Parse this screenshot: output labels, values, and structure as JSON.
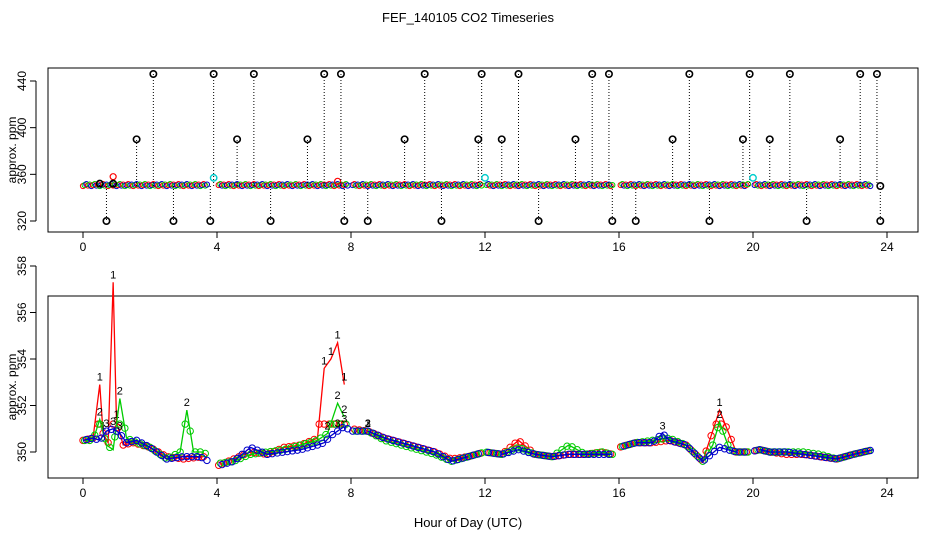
{
  "title": "FEF_140105  CO2 Timeseries",
  "xlabel": "Hour of Day (UTC)",
  "colors": {
    "series1": "#ff0000",
    "series2": "#00cc00",
    "series3": "#0000cc",
    "calibration": "#00cccc",
    "axis": "#000000"
  },
  "chart_data": [
    {
      "type": "scatter",
      "title": "FEF_140105  CO2 Timeseries",
      "xlabel": "",
      "ylabel": "approx. ppm",
      "xlim": [
        0,
        24
      ],
      "ylim": [
        314,
        446
      ],
      "xticks": [
        "0",
        "4",
        "8",
        "12",
        "16",
        "20",
        "24"
      ],
      "yticks": [
        "320",
        "360",
        "400",
        "440"
      ],
      "baseline_ppm": 350,
      "spike_times": [
        0.5,
        0.7,
        0.9,
        1.6,
        2.1,
        2.7,
        3.8,
        3.9,
        4.6,
        5.1,
        5.6,
        6.7,
        7.2,
        7.7,
        7.8,
        8.5,
        9.6,
        10.2,
        10.7,
        11.8,
        11.9,
        12.5,
        13.0,
        13.6,
        14.7,
        15.2,
        15.7,
        15.8,
        16.5,
        17.6,
        18.1,
        18.7,
        19.7,
        19.9,
        20.5,
        21.1,
        21.6,
        22.6,
        23.2,
        23.7,
        23.8
      ],
      "spike_values": [
        352,
        320,
        352,
        390,
        446,
        320,
        320,
        446,
        390,
        446,
        320,
        390,
        446,
        446,
        320,
        320,
        390,
        446,
        320,
        390,
        446,
        390,
        446,
        320,
        390,
        446,
        446,
        320,
        320,
        390,
        446,
        320,
        390,
        446,
        390,
        446,
        320,
        390,
        446,
        446,
        320
      ],
      "calibration_points": [
        {
          "x": 3.9,
          "y": 357
        },
        {
          "x": 12.0,
          "y": 357
        },
        {
          "x": 20.0,
          "y": 357
        }
      ]
    },
    {
      "type": "line",
      "title": "",
      "xlabel": "Hour of Day (UTC)",
      "ylabel": "approx. ppm",
      "xlim": [
        0,
        24
      ],
      "ylim": [
        349.0,
        358.0
      ],
      "xticks": [
        "0",
        "4",
        "8",
        "12",
        "16",
        "20",
        "24"
      ],
      "yticks": [
        "350",
        "352",
        "354",
        "356",
        "358"
      ],
      "series": [
        {
          "name": "1",
          "label": "1",
          "x": [
            0,
            0.3,
            0.5,
            0.6,
            0.75,
            0.9,
            1.0,
            1.2,
            1.5,
            2.0,
            2.5,
            3.0,
            3.6,
            4.0,
            4.5,
            5.0,
            5.5,
            6.0,
            6.5,
            7.0,
            7.2,
            7.4,
            7.6,
            7.8,
            8.0,
            8.5,
            9.0,
            9.5,
            10.0,
            10.5,
            11.0,
            11.5,
            12.0,
            12.5,
            13.0,
            13.5,
            14.0,
            14.5,
            15.0,
            15.5,
            15.8,
            16.0,
            16.5,
            17.0,
            17.5,
            18.0,
            18.5,
            19.0,
            19.5,
            19.9,
            20.2,
            20.5,
            21.0,
            21.5,
            22.0,
            22.5,
            23.0,
            23.6
          ],
          "values": [
            350.5,
            350.6,
            352.9,
            350.8,
            350.4,
            357.3,
            351.3,
            350.3,
            350.4,
            350.2,
            349.8,
            349.7,
            349.8,
            349.4,
            349.7,
            350.0,
            349.9,
            350.2,
            350.3,
            350.6,
            353.6,
            354.0,
            354.7,
            352.9,
            351.0,
            350.9,
            350.6,
            350.4,
            350.2,
            350.0,
            349.7,
            349.8,
            350.0,
            349.9,
            350.5,
            349.9,
            349.8,
            349.9,
            349.9,
            350.0,
            349.9,
            350.2,
            350.4,
            350.4,
            350.5,
            350.3,
            349.6,
            351.8,
            350.0,
            350.0,
            350.1,
            350.0,
            349.9,
            349.9,
            349.8,
            349.7,
            349.9,
            350.1
          ]
        },
        {
          "name": "2",
          "label": "2",
          "x": [
            0,
            0.3,
            0.5,
            0.7,
            0.9,
            1.1,
            1.3,
            1.6,
            2.0,
            2.5,
            2.9,
            3.1,
            3.3,
            3.6,
            4.0,
            4.5,
            5.0,
            5.5,
            6.0,
            6.5,
            7.0,
            7.3,
            7.6,
            7.8,
            8.0,
            8.5,
            9.0,
            9.5,
            10.0,
            10.5,
            11.0,
            11.5,
            12.0,
            12.5,
            13.0,
            13.5,
            14.0,
            14.5,
            15.0,
            15.5,
            15.8,
            16.0,
            16.5,
            17.0,
            17.5,
            18.0,
            18.5,
            18.8,
            19.0,
            19.3,
            19.5,
            19.9,
            20.2,
            20.5,
            21.0,
            21.5,
            22.0,
            22.5,
            23.0,
            23.6
          ],
          "values": [
            350.5,
            350.5,
            351.4,
            350.3,
            350.1,
            352.3,
            350.6,
            350.4,
            350.2,
            349.7,
            350.0,
            351.8,
            350.0,
            350.0,
            349.5,
            349.6,
            349.9,
            350.0,
            350.1,
            350.3,
            350.5,
            350.8,
            352.1,
            351.5,
            350.9,
            350.9,
            350.5,
            350.3,
            350.1,
            349.9,
            349.6,
            349.8,
            350.0,
            349.9,
            350.2,
            349.9,
            349.8,
            350.3,
            349.9,
            350.0,
            349.9,
            350.2,
            350.4,
            350.5,
            350.6,
            350.3,
            349.6,
            350.3,
            351.3,
            350.1,
            350.0,
            350.0,
            350.1,
            350.0,
            350.0,
            350.0,
            349.9,
            349.7,
            349.9,
            350.1
          ]
        },
        {
          "name": "3",
          "label": "3",
          "x": [
            0,
            0.3,
            0.5,
            0.7,
            0.9,
            1.1,
            1.3,
            1.6,
            2.0,
            2.5,
            3.0,
            3.5,
            4.0,
            4.5,
            5.0,
            5.5,
            6.0,
            6.5,
            7.0,
            7.2,
            7.4,
            7.6,
            7.8,
            8.0,
            8.5,
            9.0,
            9.5,
            10.0,
            10.5,
            11.0,
            11.5,
            12.0,
            12.5,
            13.0,
            13.5,
            14.0,
            14.5,
            15.0,
            15.5,
            15.8,
            16.0,
            16.5,
            17.0,
            17.3,
            17.5,
            18.0,
            18.5,
            19.0,
            19.5,
            19.9,
            20.2,
            20.5,
            21.0,
            21.5,
            22.0,
            22.5,
            23.0,
            23.6
          ],
          "values": [
            350.5,
            350.6,
            350.5,
            350.9,
            351.0,
            350.8,
            350.4,
            350.5,
            350.2,
            349.7,
            349.8,
            349.8,
            349.4,
            349.6,
            350.2,
            349.9,
            350.0,
            350.1,
            350.3,
            350.4,
            350.7,
            350.9,
            351.1,
            350.9,
            350.9,
            350.6,
            350.4,
            350.2,
            350.0,
            349.6,
            349.8,
            350.0,
            349.9,
            350.1,
            349.9,
            349.8,
            349.9,
            349.9,
            349.9,
            349.9,
            350.2,
            350.4,
            350.4,
            350.8,
            350.5,
            350.3,
            349.6,
            350.2,
            350.0,
            350.0,
            350.1,
            350.0,
            350.0,
            349.9,
            349.8,
            349.7,
            349.9,
            350.1
          ]
        }
      ]
    }
  ]
}
